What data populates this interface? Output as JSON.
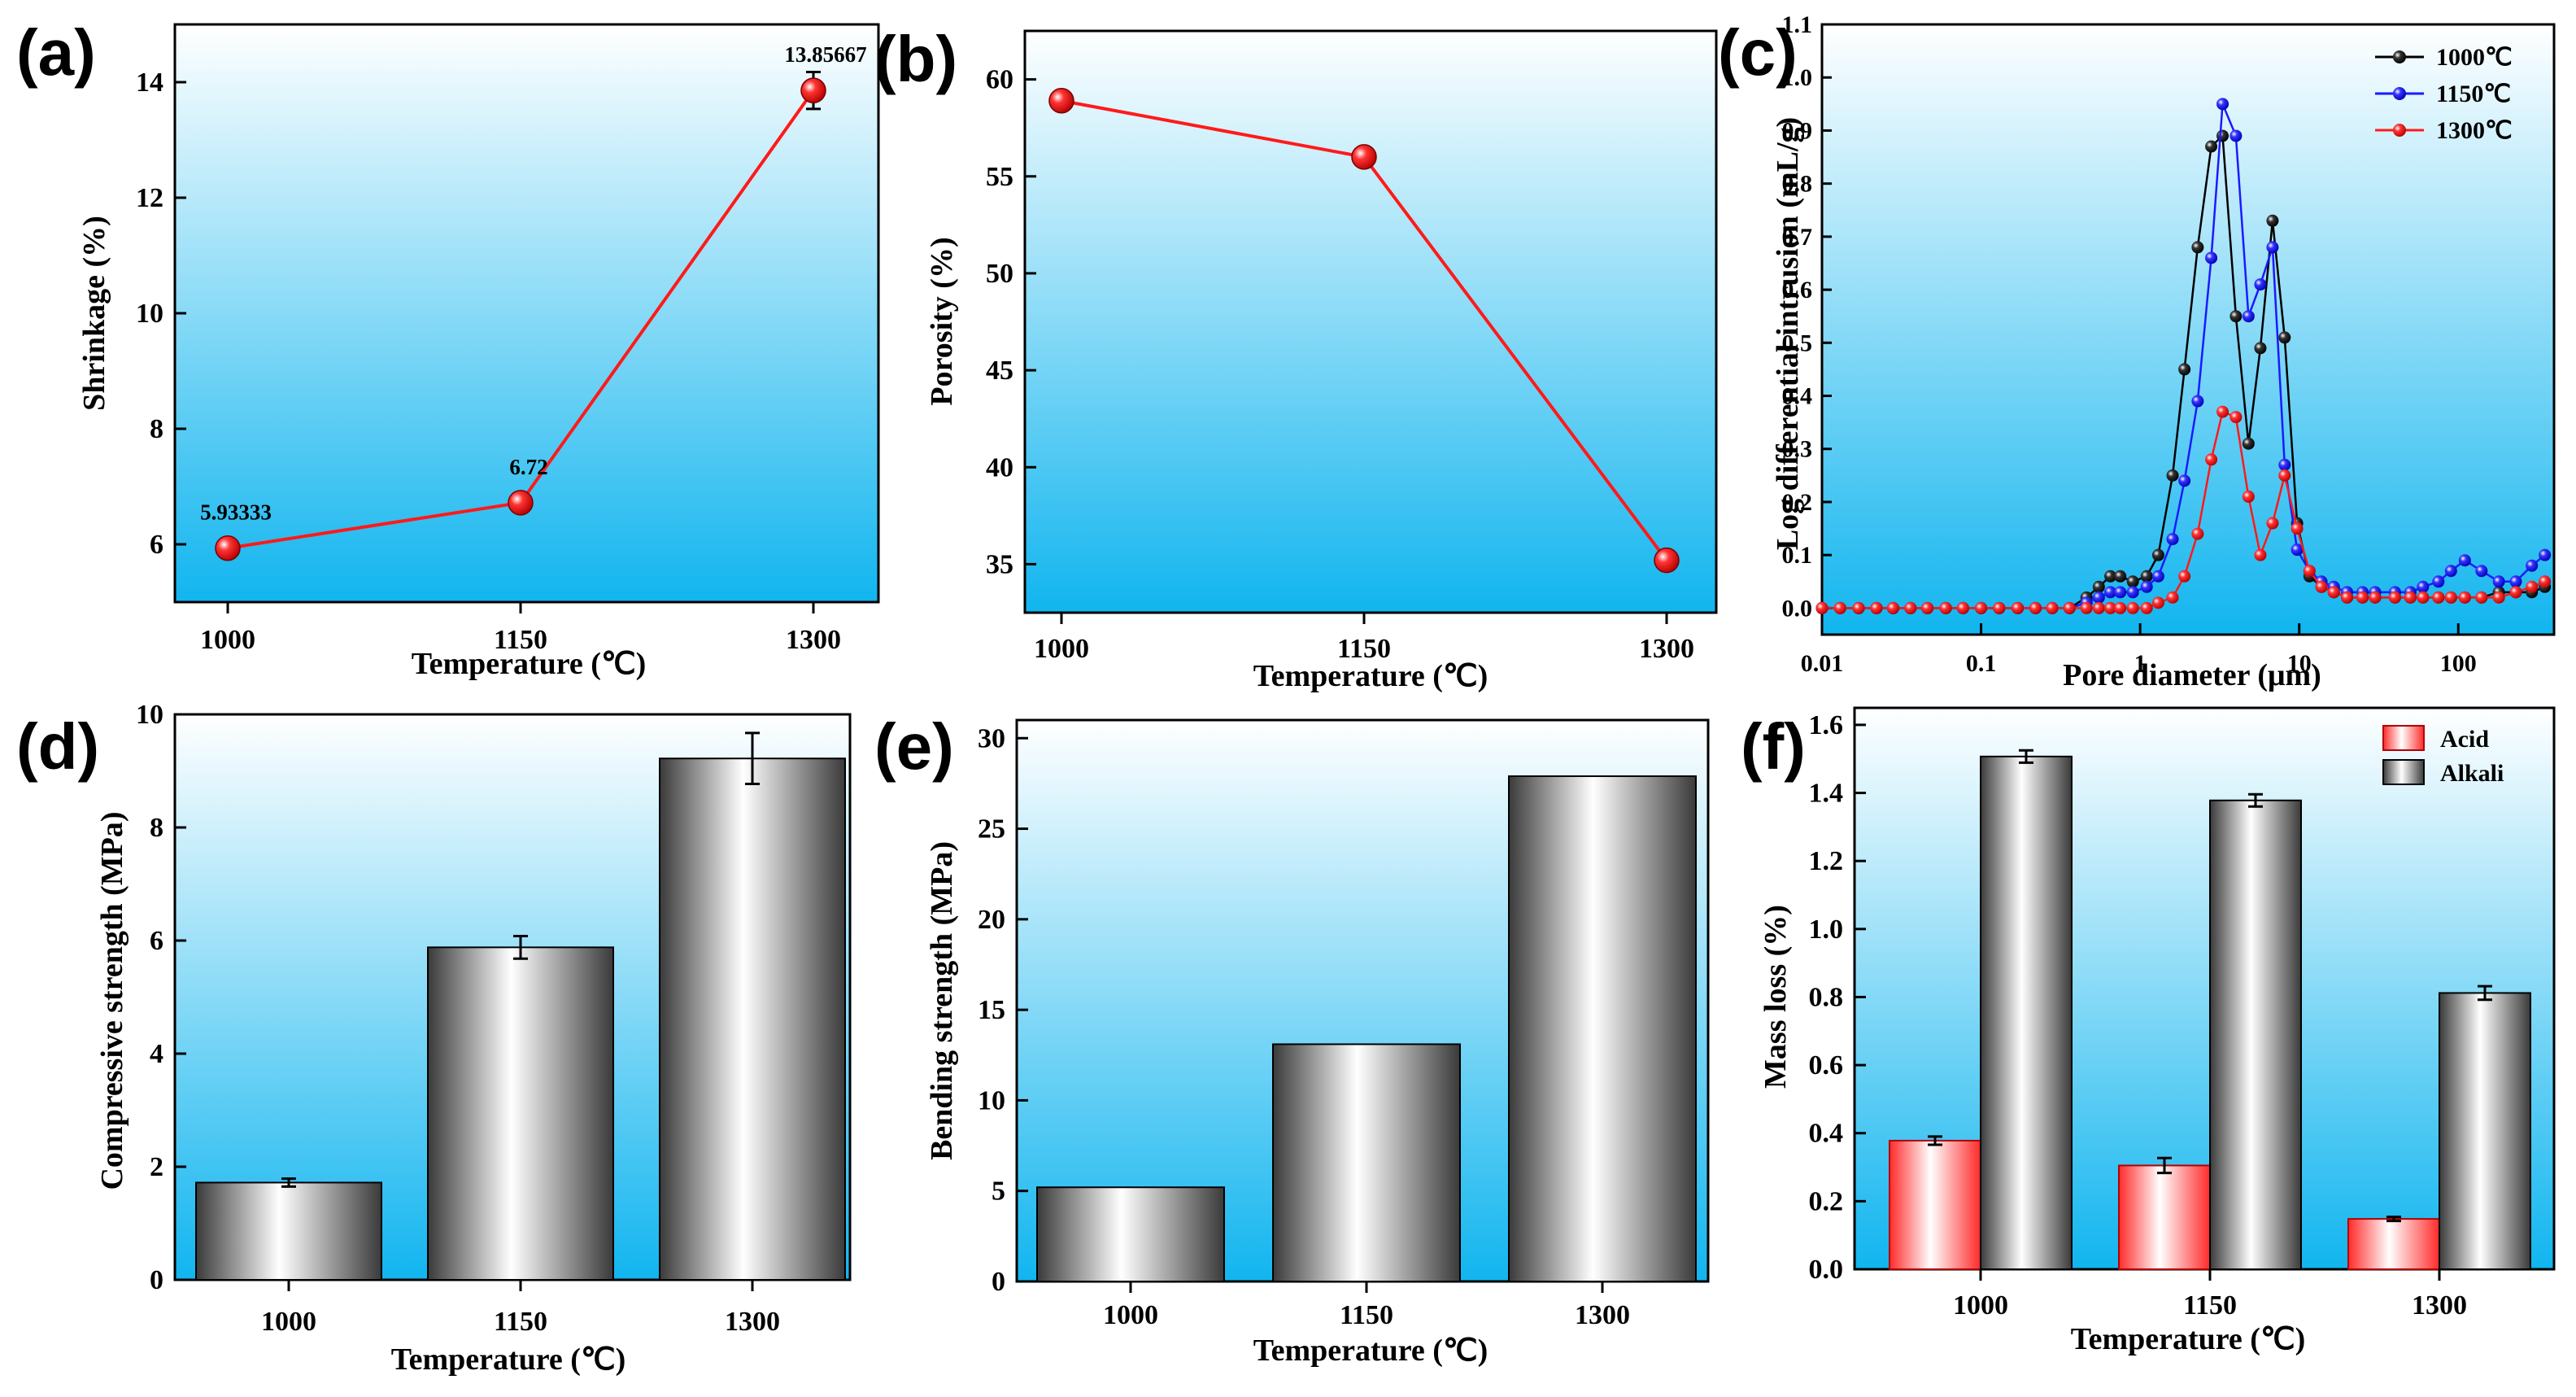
{
  "colors": {
    "bg_top": "#ffffff",
    "bg_bottom": "#11b5ef",
    "line_red": "#ff1a1a",
    "series_black": "#000000",
    "series_blue": "#1a1aff",
    "series_red": "#ff1a1a"
  },
  "chart_data": [
    {
      "id": "a",
      "panel_label": "(a)",
      "type": "line",
      "x": [
        "1000",
        "1150",
        "1300"
      ],
      "values": [
        5.93333,
        6.72,
        13.85667
      ],
      "errors": [
        0.12,
        0.15,
        0.32
      ],
      "data_labels": [
        "5.93333",
        "6.72",
        "13.85667"
      ],
      "yticks": [
        "6",
        "8",
        "10",
        "12",
        "14"
      ],
      "ylim": [
        5.0,
        15.0
      ],
      "xlabel": "Temperature (℃)",
      "ylabel": "Shrinkage (%)"
    },
    {
      "id": "b",
      "panel_label": "(b)",
      "type": "line",
      "x": [
        "1000",
        "1150",
        "1300"
      ],
      "values": [
        58.9,
        56.0,
        35.2
      ],
      "yticks": [
        "35",
        "40",
        "45",
        "50",
        "55",
        "60"
      ],
      "ylim": [
        32.5,
        62.5
      ],
      "xlabel": "Temperature (℃)",
      "ylabel": "Porosity (%)"
    },
    {
      "id": "c",
      "panel_label": "(c)",
      "type": "line",
      "xscale": "log",
      "xlim": [
        0.01,
        400
      ],
      "ylim": [
        -0.05,
        1.1
      ],
      "xticks": [
        "0.01",
        "0.1",
        "1",
        "10",
        "100"
      ],
      "yticks": [
        "0.0",
        "0.1",
        "0.2",
        "0.3",
        "0.4",
        "0.5",
        "0.6",
        "0.7",
        "0.8",
        "0.9",
        "1.0",
        "1.1"
      ],
      "xlabel": "Pore  diameter (μm)",
      "ylabel": "Log differential intrusion (mL/g)",
      "legend_position": "top-right",
      "series": [
        {
          "name": "1000℃",
          "color": "#000000",
          "x": [
            0.01,
            0.013,
            0.017,
            0.022,
            0.028,
            0.036,
            0.046,
            0.06,
            0.077,
            0.1,
            0.13,
            0.17,
            0.22,
            0.28,
            0.36,
            0.46,
            0.55,
            0.65,
            0.75,
            0.9,
            1.1,
            1.3,
            1.6,
            1.9,
            2.3,
            2.8,
            3.3,
            4.0,
            4.8,
            5.7,
            6.8,
            8.1,
            9.7,
            11.6,
            13.8,
            16.5,
            20,
            25,
            30,
            40,
            50,
            60,
            75,
            90,
            110,
            140,
            180,
            230,
            290,
            350
          ],
          "y": [
            0,
            0,
            0,
            0,
            0,
            0,
            0,
            0,
            0,
            0,
            0,
            0,
            0,
            0,
            0,
            0.02,
            0.04,
            0.06,
            0.06,
            0.05,
            0.06,
            0.1,
            0.25,
            0.45,
            0.68,
            0.87,
            0.89,
            0.55,
            0.31,
            0.49,
            0.73,
            0.51,
            0.16,
            0.06,
            0.04,
            0.03,
            0.02,
            0.02,
            0.02,
            0.02,
            0.02,
            0.02,
            0.02,
            0.02,
            0.02,
            0.02,
            0.03,
            0.03,
            0.03,
            0.04
          ]
        },
        {
          "name": "1150℃",
          "color": "#1a1aff",
          "x": [
            0.01,
            0.013,
            0.017,
            0.022,
            0.028,
            0.036,
            0.046,
            0.06,
            0.077,
            0.1,
            0.13,
            0.17,
            0.22,
            0.28,
            0.36,
            0.46,
            0.55,
            0.65,
            0.75,
            0.9,
            1.1,
            1.3,
            1.6,
            1.9,
            2.3,
            2.8,
            3.3,
            4.0,
            4.8,
            5.7,
            6.8,
            8.1,
            9.7,
            11.6,
            13.8,
            16.5,
            20,
            25,
            30,
            40,
            50,
            60,
            75,
            90,
            110,
            140,
            180,
            230,
            290,
            350
          ],
          "y": [
            0,
            0,
            0,
            0,
            0,
            0,
            0,
            0,
            0,
            0,
            0,
            0,
            0,
            0,
            0,
            0.01,
            0.02,
            0.03,
            0.03,
            0.03,
            0.04,
            0.06,
            0.13,
            0.24,
            0.39,
            0.66,
            0.95,
            0.89,
            0.55,
            0.61,
            0.68,
            0.27,
            0.11,
            0.07,
            0.05,
            0.04,
            0.03,
            0.03,
            0.03,
            0.03,
            0.03,
            0.04,
            0.05,
            0.07,
            0.09,
            0.07,
            0.05,
            0.05,
            0.08,
            0.1
          ]
        },
        {
          "name": "1300℃",
          "color": "#ff1a1a",
          "x": [
            0.01,
            0.013,
            0.017,
            0.022,
            0.028,
            0.036,
            0.046,
            0.06,
            0.077,
            0.1,
            0.13,
            0.17,
            0.22,
            0.28,
            0.36,
            0.46,
            0.55,
            0.65,
            0.75,
            0.9,
            1.1,
            1.3,
            1.6,
            1.9,
            2.3,
            2.8,
            3.3,
            4.0,
            4.8,
            5.7,
            6.8,
            8.1,
            9.7,
            11.6,
            13.8,
            16.5,
            20,
            25,
            30,
            40,
            50,
            60,
            75,
            90,
            110,
            140,
            180,
            230,
            290,
            350
          ],
          "y": [
            0,
            0,
            0,
            0,
            0,
            0,
            0,
            0,
            0,
            0,
            0,
            0,
            0,
            0,
            0,
            0,
            0,
            0,
            0,
            0,
            0,
            0.01,
            0.02,
            0.06,
            0.14,
            0.28,
            0.37,
            0.36,
            0.21,
            0.1,
            0.16,
            0.25,
            0.15,
            0.07,
            0.04,
            0.03,
            0.02,
            0.02,
            0.02,
            0.02,
            0.02,
            0.02,
            0.02,
            0.02,
            0.02,
            0.02,
            0.02,
            0.03,
            0.04,
            0.05
          ]
        }
      ]
    },
    {
      "id": "d",
      "panel_label": "(d)",
      "type": "bar",
      "categories": [
        "1000",
        "1150",
        "1300"
      ],
      "values": [
        1.72,
        5.88,
        9.22
      ],
      "errors": [
        0.07,
        0.2,
        0.45
      ],
      "yticks": [
        "0",
        "2",
        "4",
        "6",
        "8",
        "10"
      ],
      "ylim": [
        0,
        10
      ],
      "xlabel": "Temperature (℃)",
      "ylabel": "Compressive strength (MPa)"
    },
    {
      "id": "e",
      "panel_label": "(e)",
      "type": "bar",
      "categories": [
        "1000",
        "1150",
        "1300"
      ],
      "values": [
        5.2,
        13.1,
        27.9
      ],
      "yticks": [
        "0",
        "5",
        "10",
        "15",
        "20",
        "25",
        "30"
      ],
      "ylim": [
        0,
        31
      ],
      "xlabel": "Temperature (℃)",
      "ylabel": "Bending strength (MPa)"
    },
    {
      "id": "f",
      "panel_label": "(f)",
      "type": "bar",
      "categories": [
        "1000",
        "1150",
        "1300"
      ],
      "series": [
        {
          "name": "Acid",
          "values": [
            0.378,
            0.305,
            0.148
          ],
          "errors": [
            0.012,
            0.022,
            0.006
          ]
        },
        {
          "name": "Alkali",
          "values": [
            1.507,
            1.378,
            0.812
          ],
          "errors": [
            0.018,
            0.018,
            0.02
          ]
        }
      ],
      "yticks": [
        "0.0",
        "0.2",
        "0.4",
        "0.6",
        "0.8",
        "1.0",
        "1.2",
        "1.4",
        "1.6"
      ],
      "ylim": [
        0,
        1.65
      ],
      "xlabel": "Temperature (℃)",
      "ylabel": "Mass loss (%)",
      "legend_position": "top-right"
    }
  ]
}
